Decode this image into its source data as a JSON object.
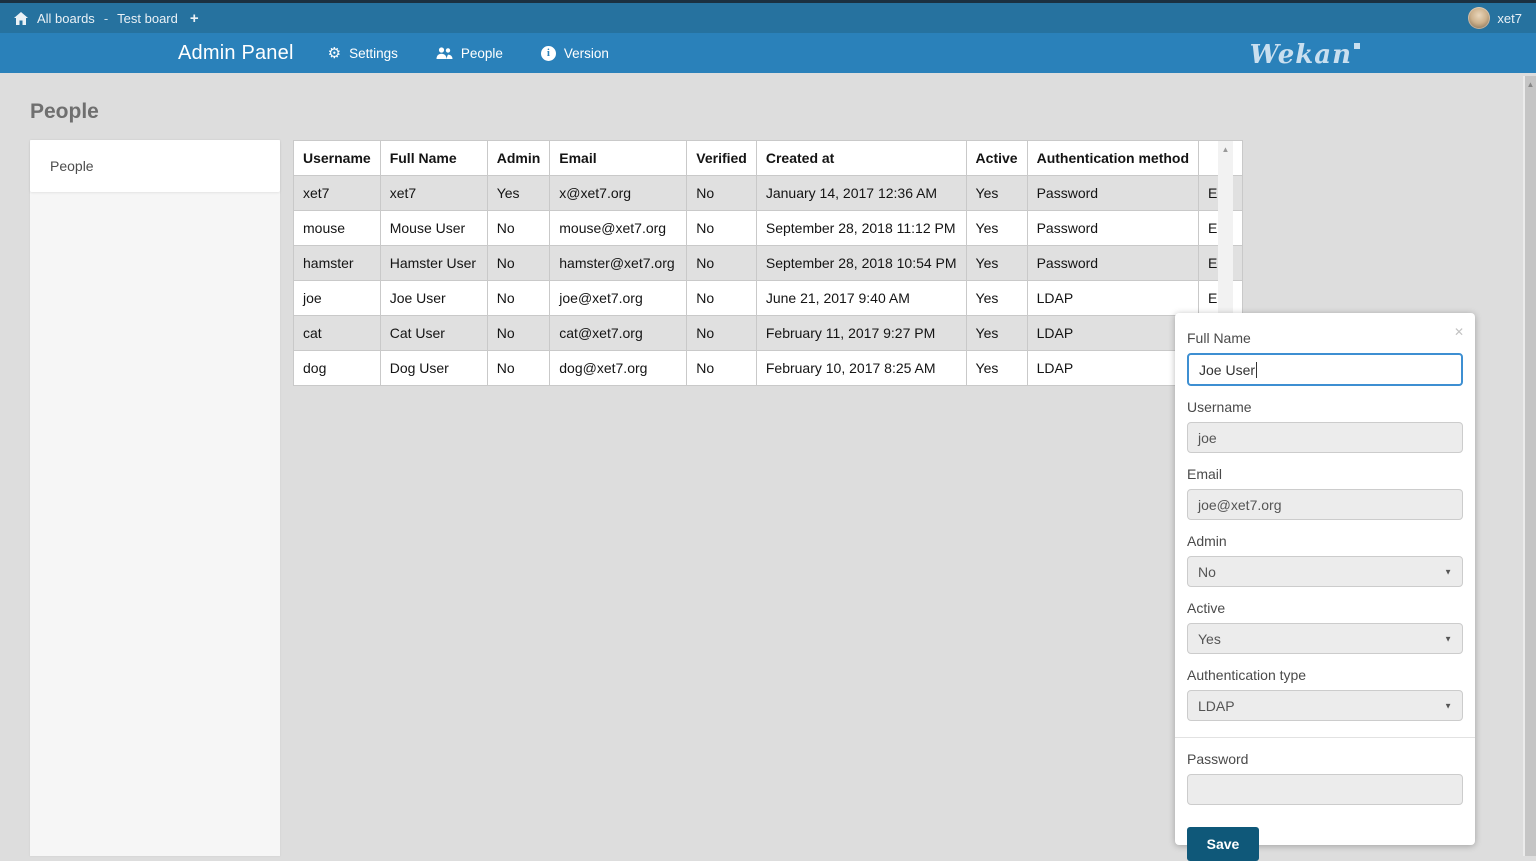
{
  "topbar": {
    "all_boards": "All boards",
    "separator": "-",
    "board_name": "Test board",
    "username": "xet7"
  },
  "adminbar": {
    "title": "Admin Panel",
    "menu": [
      {
        "icon": "gear-icon",
        "label": "Settings"
      },
      {
        "icon": "people-icon",
        "label": "People"
      },
      {
        "icon": "info-icon",
        "label": "Version"
      }
    ],
    "logo_text": "Wekan"
  },
  "page": {
    "title": "People"
  },
  "sidebar": {
    "items": [
      {
        "label": "People"
      }
    ]
  },
  "table": {
    "headers": [
      "Username",
      "Full Name",
      "Admin",
      "Email",
      "Verified",
      "Created at",
      "Active",
      "Authentication method",
      ""
    ],
    "rows": [
      [
        "xet7",
        "xet7",
        "Yes",
        "x@xet7.org",
        "No",
        "January 14, 2017 12:36 AM",
        "Yes",
        "Password",
        "Edit"
      ],
      [
        "mouse",
        "Mouse User",
        "No",
        "mouse@xet7.org",
        "No",
        "September 28, 2018 11:12 PM",
        "Yes",
        "Password",
        "Edit"
      ],
      [
        "hamster",
        "Hamster User",
        "No",
        "hamster@xet7.org",
        "No",
        "September 28, 2018 10:54 PM",
        "Yes",
        "Password",
        "Edit"
      ],
      [
        "joe",
        "Joe User",
        "No",
        "joe@xet7.org",
        "No",
        "June 21, 2017 9:40 AM",
        "Yes",
        "LDAP",
        "Edit"
      ],
      [
        "cat",
        "Cat User",
        "No",
        "cat@xet7.org",
        "No",
        "February 11, 2017 9:27 PM",
        "Yes",
        "LDAP",
        "Edit"
      ],
      [
        "dog",
        "Dog User",
        "No",
        "dog@xet7.org",
        "No",
        "February 10, 2017 8:25 AM",
        "Yes",
        "LDAP",
        "Edit"
      ]
    ]
  },
  "edit_form": {
    "close_icon": "✕",
    "full_name": {
      "label": "Full Name",
      "value": "Joe User"
    },
    "username": {
      "label": "Username",
      "value": "joe"
    },
    "email": {
      "label": "Email",
      "value": "joe@xet7.org"
    },
    "admin": {
      "label": "Admin",
      "value": "No"
    },
    "active": {
      "label": "Active",
      "value": "Yes"
    },
    "auth_type": {
      "label": "Authentication type",
      "value": "LDAP"
    },
    "password": {
      "label": "Password",
      "value": ""
    },
    "save_label": "Save"
  },
  "colors": {
    "topbar": "#26729f",
    "adminbar": "#2a81ba",
    "save_button": "#0f5879",
    "background": "#dddddd",
    "row_stripe": "#e0e0e0",
    "focus_border": "#3d8fd2"
  }
}
